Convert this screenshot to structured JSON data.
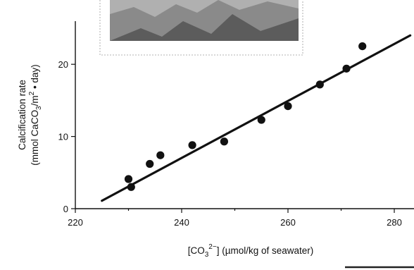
{
  "chart_data": {
    "type": "scatter",
    "title": "",
    "xlabel_prefix": "[CO",
    "xlabel_sub": "3",
    "xlabel_sup": "2−",
    "xlabel_suffix": "] (µmol/kg of seawater)",
    "ylabel_line1": "Calcification rate",
    "ylabel_line2_prefix": "(mmol CaCO",
    "ylabel_line2_sub": "3",
    "ylabel_line2_mid": "/m",
    "ylabel_line2_sup": "2",
    "ylabel_line2_suffix": " • day)",
    "xlim": [
      220,
      283
    ],
    "ylim": [
      0,
      27
    ],
    "xticks": [
      220,
      240,
      260,
      280
    ],
    "yticks": [
      0,
      10,
      20
    ],
    "x_minor_ticks": [
      230,
      250,
      270
    ],
    "grid": false,
    "legend": "none",
    "series": [
      {
        "points": [
          {
            "x": 230.0,
            "y": 4.1
          },
          {
            "x": 230.5,
            "y": 3.0
          },
          {
            "x": 234.0,
            "y": 6.2
          },
          {
            "x": 236.0,
            "y": 7.4
          },
          {
            "x": 242.0,
            "y": 8.8
          },
          {
            "x": 248.0,
            "y": 9.3
          },
          {
            "x": 255.0,
            "y": 12.3
          },
          {
            "x": 260.0,
            "y": 14.2
          },
          {
            "x": 266.0,
            "y": 17.2
          },
          {
            "x": 271.0,
            "y": 19.4
          },
          {
            "x": 274.0,
            "y": 22.5
          }
        ]
      }
    ],
    "trendline": {
      "x1": 225,
      "y1": 1.1,
      "x2": 283,
      "y2": 24.0
    }
  }
}
